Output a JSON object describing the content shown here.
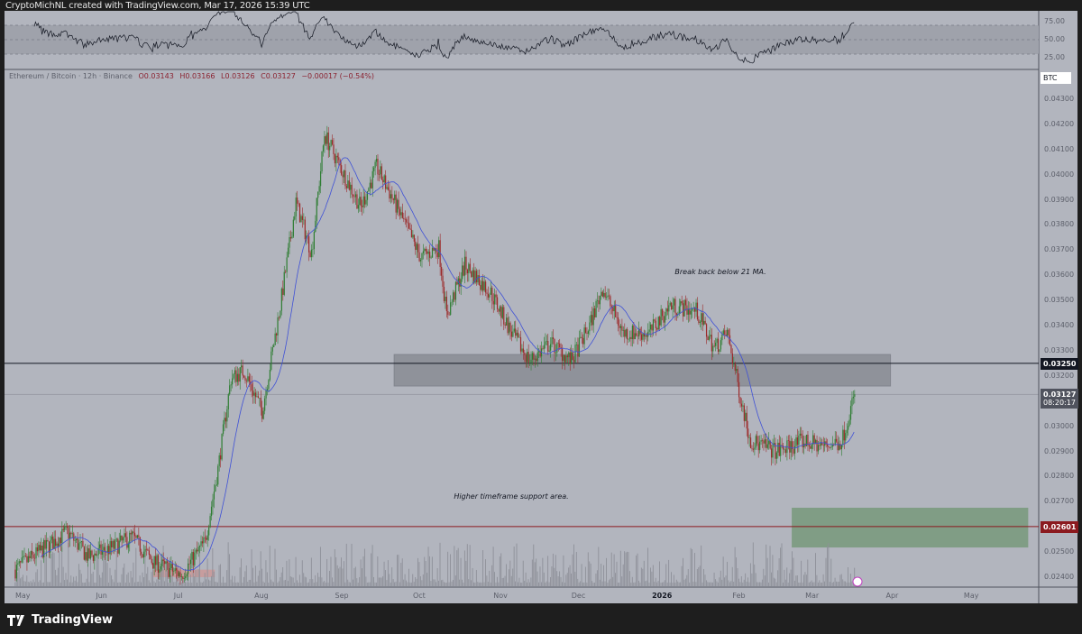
{
  "header": {
    "credit": "CryptoMichNL created with TradingView.com, Mar 17, 2026 15:39 UTC"
  },
  "legend": {
    "symbol": "Ethereum / Bitcoin · 12h · Binance",
    "open": "O0.03143",
    "high": "H0.03166",
    "low": "L0.03126",
    "close": "C0.03127",
    "change": "−0.00017 (−0.54%)"
  },
  "brand": {
    "name": "TradingView"
  },
  "price_axis": {
    "currency": "BTC"
  },
  "colors": {
    "up": "#2e7d32",
    "down": "#9c2a2a",
    "ma": "#3f51d6",
    "background": "#b2b5be",
    "red_level": "#8b1a1f",
    "support_zone": "#7a9a7e",
    "resistance_zone": "#8a8c94"
  },
  "chart_data": {
    "type": "candlestick",
    "interval": "12h",
    "title": "Ethereum / Bitcoin · 12h · Binance",
    "ylim": [
      0.0235,
      0.0438
    ],
    "xlim": [
      "2025-04-28",
      "2026-05-20"
    ],
    "y_ticks": [
      "0.04300",
      "0.04200",
      "0.04100",
      "0.04000",
      "0.03900",
      "0.03800",
      "0.03700",
      "0.03600",
      "0.03500",
      "0.03400",
      "0.03300",
      "0.03200",
      "0.03000",
      "0.02900",
      "0.02800",
      "0.02700",
      "0.02500",
      "0.02400"
    ],
    "x_ticks": [
      [
        "May",
        "2025-05-01"
      ],
      [
        "Jun",
        "2025-06-01"
      ],
      [
        "Jul",
        "2025-07-01"
      ],
      [
        "Aug",
        "2025-08-01"
      ],
      [
        "Sep",
        "2025-09-01"
      ],
      [
        "Oct",
        "2025-10-01"
      ],
      [
        "Nov",
        "2025-11-01"
      ],
      [
        "Dec",
        "2025-12-01"
      ],
      [
        "2026",
        "2026-01-01"
      ],
      [
        "Feb",
        "2026-02-01"
      ],
      [
        "Mar",
        "2026-03-01"
      ],
      [
        "Apr",
        "2026-04-01"
      ],
      [
        "May",
        "2026-05-01"
      ]
    ],
    "approx_close_path": [
      [
        "2025-04-28",
        0.0243
      ],
      [
        "2025-05-10",
        0.0252
      ],
      [
        "2025-05-18",
        0.0258
      ],
      [
        "2025-05-26",
        0.0248
      ],
      [
        "2025-06-05",
        0.0252
      ],
      [
        "2025-06-12",
        0.0256
      ],
      [
        "2025-06-20",
        0.0246
      ],
      [
        "2025-07-01",
        0.0241
      ],
      [
        "2025-07-10",
        0.0254
      ],
      [
        "2025-07-15",
        0.0283
      ],
      [
        "2025-07-20",
        0.0319
      ],
      [
        "2025-07-25",
        0.0322
      ],
      [
        "2025-08-01",
        0.0306
      ],
      [
        "2025-08-08",
        0.0348
      ],
      [
        "2025-08-14",
        0.0389
      ],
      [
        "2025-08-20",
        0.0369
      ],
      [
        "2025-08-25",
        0.0416
      ],
      [
        "2025-09-01",
        0.0401
      ],
      [
        "2025-09-08",
        0.0387
      ],
      [
        "2025-09-14",
        0.0403
      ],
      [
        "2025-09-20",
        0.0391
      ],
      [
        "2025-10-01",
        0.0367
      ],
      [
        "2025-10-08",
        0.0371
      ],
      [
        "2025-10-11",
        0.0344
      ],
      [
        "2025-10-18",
        0.0364
      ],
      [
        "2025-10-28",
        0.0353
      ],
      [
        "2025-11-05",
        0.0337
      ],
      [
        "2025-11-12",
        0.0326
      ],
      [
        "2025-11-20",
        0.0333
      ],
      [
        "2025-11-28",
        0.0326
      ],
      [
        "2025-12-05",
        0.034
      ],
      [
        "2025-12-10",
        0.0355
      ],
      [
        "2025-12-18",
        0.0337
      ],
      [
        "2025-12-28",
        0.0337
      ],
      [
        "2026-01-05",
        0.0348
      ],
      [
        "2026-01-15",
        0.0346
      ],
      [
        "2026-01-22",
        0.0331
      ],
      [
        "2026-01-27",
        0.0337
      ],
      [
        "2026-02-01",
        0.0312
      ],
      [
        "2026-02-05",
        0.0294
      ],
      [
        "2026-02-15",
        0.029
      ],
      [
        "2026-02-25",
        0.0294
      ],
      [
        "2026-03-05",
        0.0292
      ],
      [
        "2026-03-12",
        0.0294
      ],
      [
        "2026-03-17",
        0.03127
      ]
    ],
    "moving_average": {
      "period": 21
    },
    "indicators": {
      "rsi": {
        "ticks": [
          "75.00",
          "50.00",
          "25.00"
        ],
        "band": [
          30,
          70
        ]
      }
    },
    "levels": [
      {
        "price": 0.0325,
        "label": "0.03250",
        "color": "#131722"
      },
      {
        "price": 0.02601,
        "label": "0.02601",
        "color": "#8b1a1f"
      },
      {
        "price": 0.03127,
        "label": "0.03127",
        "countdown": "08:20:17",
        "color": "#50535e"
      }
    ],
    "zones": [
      {
        "kind": "resistance",
        "from": "2025-09-21",
        "to": "2026-03-31",
        "low": 0.0316,
        "high": 0.03285
      },
      {
        "kind": "target",
        "from": "2026-02-21",
        "to": "2026-05-23",
        "low": 0.02518,
        "high": 0.02676
      },
      {
        "kind": "marker",
        "from": "2025-06-20",
        "to": "2025-07-14",
        "low": 0.024,
        "high": 0.0243
      }
    ],
    "annotations": [
      {
        "text": "Break back below 21 MA.",
        "date": "2026-01-07",
        "price": 0.0361
      },
      {
        "text": "Higher timeframe support area.",
        "date": "2025-10-14",
        "price": 0.0272
      }
    ]
  }
}
